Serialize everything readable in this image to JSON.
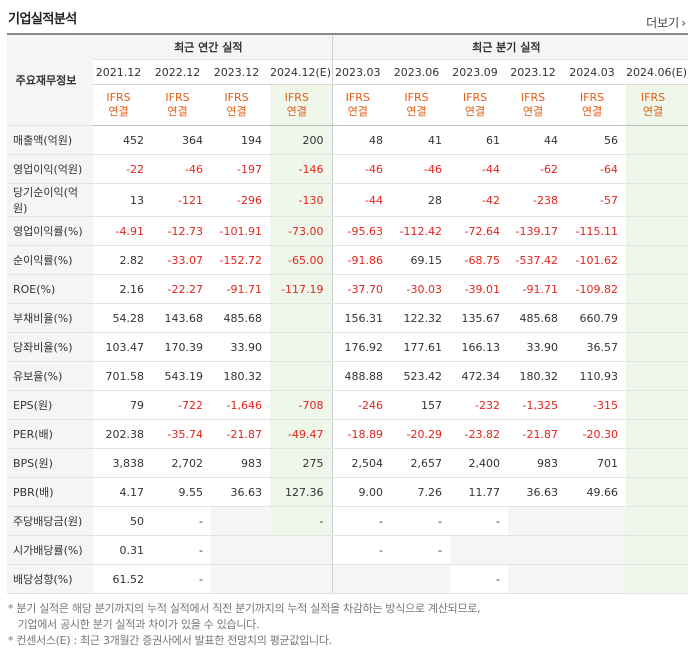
{
  "title": "기업실적분석",
  "more_label": "더보기",
  "row_header": "주요재무정보",
  "group_annual": "최근 연간 실적",
  "group_quarter": "최근 분기 실적",
  "periods": [
    "2021.12",
    "2022.12",
    "2023.12",
    "2024.12(E)",
    "2023.03",
    "2023.06",
    "2023.09",
    "2023.12",
    "2024.03",
    "2024.06(E)"
  ],
  "basis_top": "IFRS",
  "basis_bottom": "연결",
  "rows": [
    {
      "label": "매출액(억원)",
      "values": [
        "452",
        "364",
        "194",
        "200",
        "48",
        "41",
        "61",
        "44",
        "56",
        ""
      ]
    },
    {
      "label": "영업이익(억원)",
      "values": [
        "-22",
        "-46",
        "-197",
        "-146",
        "-46",
        "-46",
        "-44",
        "-62",
        "-64",
        ""
      ]
    },
    {
      "label": "당기순이익(억원)",
      "values": [
        "13",
        "-121",
        "-296",
        "-130",
        "-44",
        "28",
        "-42",
        "-238",
        "-57",
        ""
      ]
    },
    {
      "label": "영업이익률(%)",
      "values": [
        "-4.91",
        "-12.73",
        "-101.91",
        "-73.00",
        "-95.63",
        "-112.42",
        "-72.64",
        "-139.17",
        "-115.11",
        ""
      ]
    },
    {
      "label": "순이익률(%)",
      "values": [
        "2.82",
        "-33.07",
        "-152.72",
        "-65.00",
        "-91.86",
        "69.15",
        "-68.75",
        "-537.42",
        "-101.62",
        ""
      ]
    },
    {
      "label": "ROE(%)",
      "values": [
        "2.16",
        "-22.27",
        "-91.71",
        "-117.19",
        "-37.70",
        "-30.03",
        "-39.01",
        "-91.71",
        "-109.82",
        ""
      ]
    },
    {
      "label": "부채비율(%)",
      "values": [
        "54.28",
        "143.68",
        "485.68",
        "",
        "156.31",
        "122.32",
        "135.67",
        "485.68",
        "660.79",
        ""
      ]
    },
    {
      "label": "당좌비율(%)",
      "values": [
        "103.47",
        "170.39",
        "33.90",
        "",
        "176.92",
        "177.61",
        "166.13",
        "33.90",
        "36.57",
        ""
      ]
    },
    {
      "label": "유보율(%)",
      "values": [
        "701.58",
        "543.19",
        "180.32",
        "",
        "488.88",
        "523.42",
        "472.34",
        "180.32",
        "110.93",
        ""
      ]
    },
    {
      "label": "EPS(원)",
      "values": [
        "79",
        "-722",
        "-1,646",
        "-708",
        "-246",
        "157",
        "-232",
        "-1,325",
        "-315",
        ""
      ]
    },
    {
      "label": "PER(배)",
      "values": [
        "202.38",
        "-35.74",
        "-21.87",
        "-49.47",
        "-18.89",
        "-20.29",
        "-23.82",
        "-21.87",
        "-20.30",
        ""
      ]
    },
    {
      "label": "BPS(원)",
      "values": [
        "3,838",
        "2,702",
        "983",
        "275",
        "2,504",
        "2,657",
        "2,400",
        "983",
        "701",
        ""
      ]
    },
    {
      "label": "PBR(배)",
      "values": [
        "4.17",
        "9.55",
        "36.63",
        "127.36",
        "9.00",
        "7.26",
        "11.77",
        "36.63",
        "49.66",
        ""
      ]
    },
    {
      "label": "주당배당금(원)",
      "values": [
        "50",
        "-",
        "",
        "-",
        "-",
        "-",
        "-",
        "",
        "",
        ""
      ]
    },
    {
      "label": "시가배당률(%)",
      "values": [
        "0.31",
        "-",
        "",
        "",
        "-",
        "-",
        "",
        "",
        "",
        ""
      ]
    },
    {
      "label": "배당성향(%)",
      "values": [
        "61.52",
        "-",
        "",
        "",
        "",
        "",
        "-",
        "",
        "",
        ""
      ]
    }
  ],
  "footnote1": "* 분기 실적은 해당 분기까지의 누적 실적에서 직전 분기까지의 누적 실적을 차감하는 방식으로 계산되므로,",
  "footnote2": "   기업에서 공시한 분기 실적과 차이가 있을 수 있습니다.",
  "footnote3": "* 컨센서스(E) : 최근 3개월간 증권사에서 발표한 전망치의 평균값입니다.",
  "colors": {
    "negative": "#e3231b",
    "ifrs": "#e55b13",
    "estimate_bg": "#eef7ea",
    "label_bg": "#f5f5f5"
  }
}
